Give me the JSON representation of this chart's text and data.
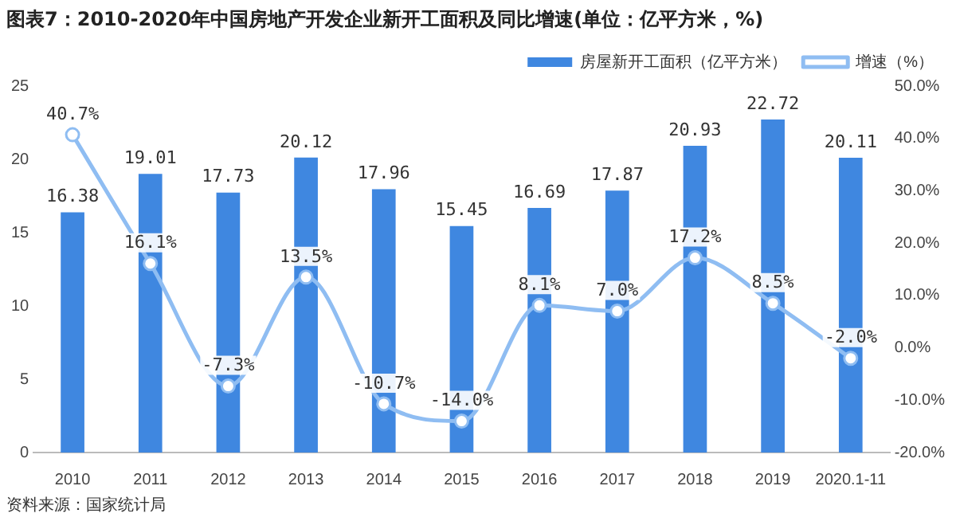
{
  "chart_data": {
    "type": "bar",
    "title": "图表7：2010-2020年中国房地产开发企业新开工面积及同比增速(单位：亿平方米，%)",
    "categories": [
      "2010",
      "2011",
      "2012",
      "2013",
      "2014",
      "2015",
      "2016",
      "2017",
      "2018",
      "2019",
      "2020.1-11"
    ],
    "series": [
      {
        "name": "房屋新开工面积（亿平方米）",
        "color": "#3f87e0",
        "values": [
          16.38,
          19.01,
          17.73,
          20.12,
          17.96,
          15.45,
          16.69,
          17.87,
          20.93,
          22.72,
          20.11
        ],
        "value_labels": [
          "16.38",
          "19.01",
          "17.73",
          "20.12",
          "17.96",
          "15.45",
          "16.69",
          "17.87",
          "20.93",
          "22.72",
          "20.11"
        ]
      },
      {
        "name": "增速（%）",
        "type": "line",
        "axis": "y2",
        "color": "#8fbdf2",
        "values": [
          40.7,
          16.1,
          -7.3,
          13.5,
          -10.7,
          -14.0,
          8.1,
          7.0,
          17.2,
          8.5,
          -2.0
        ],
        "value_labels": [
          "40.7%",
          "16.1%",
          "-7.3%",
          "13.5%",
          "-10.7%",
          "-14.0%",
          "8.1%",
          "7.0%",
          "17.2%",
          "8.5%",
          "-2.0%"
        ]
      }
    ],
    "ylim": [
      0,
      25
    ],
    "yticks": [
      0,
      5,
      10,
      15,
      20,
      25
    ],
    "y2lim": [
      -20,
      50
    ],
    "y2ticks": [
      {
        "value": -20,
        "label": "-20.0%"
      },
      {
        "value": -10,
        "label": "-10.0%"
      },
      {
        "value": 0,
        "label": "0.0%"
      },
      {
        "value": 10,
        "label": "10.0%"
      },
      {
        "value": 20,
        "label": "20.0%"
      },
      {
        "value": 30,
        "label": "30.0%"
      },
      {
        "value": 40,
        "label": "40.0%"
      },
      {
        "value": 50,
        "label": "50.0%"
      }
    ],
    "grid": false,
    "legend": "top right",
    "marker": "circle",
    "line_style": "solid",
    "annotations": [
      "资料来源：国家统计局"
    ]
  }
}
